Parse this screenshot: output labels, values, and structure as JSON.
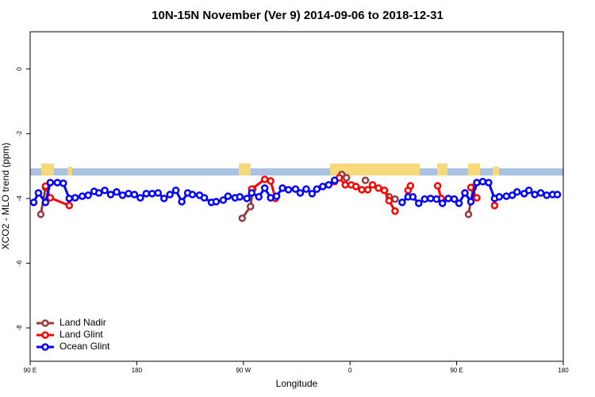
{
  "chart_data": {
    "type": "line",
    "title": "10N-15N November (Ver 9)   2014-09-06 to 2018-12-31",
    "x_label": "Longitude",
    "y_label": "XCO2 - MLO trend (ppm)",
    "xlim": [
      90,
      540
    ],
    "xticks": [
      {
        "value": 90,
        "label": "90 E"
      },
      180,
      {
        "value": 270,
        "label": "90 W"
      },
      {
        "value": 360,
        "label": "0"
      },
      {
        "value": 450,
        "label": "90 E"
      },
      {
        "value": 540,
        "label": "180"
      }
    ],
    "ylim": [
      -9.03,
      1.15
    ],
    "yticks": [
      0,
      -2,
      -4,
      -6,
      -8
    ],
    "legend": "bottom-left",
    "series": [
      {
        "name": "Land Nadir",
        "color": "#943c3c",
        "x": [
          99,
          103,
          null,
          269,
          276,
          278,
          null,
          353,
          357,
          null,
          373,
          null,
          389,
          393,
          398,
          null,
          460,
          464
        ],
        "values": [
          -4.49,
          -3.66,
          null,
          -4.61,
          -4.25,
          -3.71,
          null,
          -3.26,
          -3.36,
          null,
          -3.44,
          null,
          -3.75,
          -3.95,
          -4.02,
          null,
          -4.49,
          -3.66
        ]
      },
      {
        "name": "Land Glint",
        "color": "#ff0000",
        "x": [
          103,
          107,
          123,
          null,
          277,
          288,
          293,
          297,
          null,
          347,
          351,
          356,
          361,
          365,
          370,
          375,
          379,
          384,
          389,
          393,
          398,
          null,
          409,
          411,
          null,
          434,
          437,
          null,
          462,
          467,
          null,
          482
        ],
        "values": [
          -3.62,
          -3.98,
          -4.22,
          null,
          -3.71,
          -3.41,
          -3.46,
          -4.0,
          null,
          -3.48,
          -3.36,
          -3.58,
          -3.58,
          -3.63,
          -3.73,
          -3.73,
          -3.58,
          -3.68,
          -3.75,
          -4.07,
          -4.39,
          null,
          -3.75,
          -3.61,
          null,
          -3.61,
          -4.0,
          null,
          -3.66,
          -3.98,
          null,
          -4.22
        ]
      },
      {
        "name": "Ocean Glint",
        "color": "#0000ff",
        "x": [
          93,
          97,
          103,
          107,
          113,
          118,
          123,
          128,
          134,
          139,
          144,
          148,
          153,
          158,
          163,
          168,
          173,
          178,
          183,
          188,
          193,
          198,
          203,
          208,
          213,
          218,
          223,
          227,
          233,
          237,
          243,
          247,
          253,
          257,
          263,
          267,
          273,
          277,
          283,
          288,
          293,
          298,
          303,
          308,
          314,
          318,
          323,
          328,
          332,
          337,
          342,
          347,
          null,
          404,
          409,
          413,
          418,
          423,
          428,
          433,
          438,
          443,
          448,
          452,
          457,
          462,
          467,
          472,
          477,
          482,
          486,
          492,
          497,
          501,
          507,
          511,
          516,
          521,
          526,
          531,
          535
        ],
        "values": [
          -4.12,
          -3.83,
          -4.12,
          -3.51,
          -3.51,
          -3.53,
          -4.0,
          -3.98,
          -3.93,
          -3.9,
          -3.78,
          -3.83,
          -3.75,
          -3.88,
          -3.8,
          -3.9,
          -3.85,
          -3.88,
          -3.98,
          -3.85,
          -3.85,
          -3.83,
          -4.0,
          -3.88,
          -3.75,
          -4.1,
          -3.83,
          -3.88,
          -3.9,
          -3.98,
          -4.12,
          -4.1,
          -4.05,
          -3.93,
          -3.98,
          -3.95,
          -4.0,
          -3.83,
          -3.95,
          -3.68,
          -3.98,
          -3.93,
          -3.68,
          -3.73,
          -3.71,
          -3.83,
          -3.71,
          -3.85,
          -3.71,
          -3.63,
          -3.58,
          -3.44,
          null,
          -4.12,
          -3.95,
          -3.95,
          -4.15,
          -4.02,
          -4.0,
          -4.02,
          -4.15,
          -4.0,
          -4.02,
          -4.15,
          -3.83,
          -4.1,
          -3.51,
          -3.48,
          -3.51,
          -4.0,
          -3.95,
          -3.93,
          -3.9,
          -3.8,
          -3.85,
          -3.75,
          -3.88,
          -3.83,
          -3.9,
          -3.88,
          -3.88
        ]
      }
    ]
  }
}
